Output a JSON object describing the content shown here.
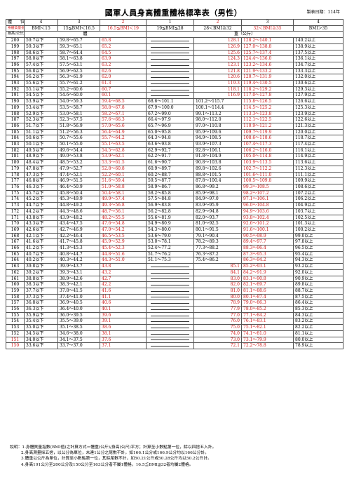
{
  "title": "國軍人員身高體重體格標準表（男性）",
  "date_label": "製表日期：114年",
  "header": {
    "row1": [
      "體　　位",
      "4",
      "3",
      "2",
      "1",
      "2",
      "3",
      "4"
    ],
    "row2": [
      "身體質量指數",
      "BMI＜15",
      "15≦BMI＜16.5",
      "16.5≦BMI＜19",
      "19≦BMI≦28",
      "28＜BMI≦32",
      "32＜BMI≦35",
      "BMI＞35"
    ],
    "row3_left": "身高(公分)",
    "row3_mid": "體",
    "row3_right": "重（公斤）"
  },
  "rows": [
    {
      "h": "200",
      "a": "59.7以下",
      "b": "59.8～65.7",
      "c": "65.8",
      "d": "",
      "e": "128.1",
      "f": "128.2～140.1",
      "g": "140.2以上"
    },
    {
      "h": "199",
      "a": "59.3以下",
      "b": "59.3～65.1",
      "c": "65.2",
      "d": "",
      "e": "126.9",
      "f": "127.0～138.8",
      "g": "138.9以上"
    },
    {
      "h": "198",
      "a": "58.6以下",
      "b": "58.7～64.4",
      "c": "64.5",
      "d": "",
      "e": "125.6",
      "f": "125.7～137.4",
      "g": "137.5以上"
    },
    {
      "h": "197",
      "a": "58.0以下",
      "b": "58.1～63.8",
      "c": "63.9",
      "d": "",
      "e": "124.3",
      "f": "124.4～136.0",
      "g": "136.1以上"
    },
    {
      "h": "196",
      "a": "57.4以下",
      "b": "57.5～63.1",
      "c": "63.2",
      "d": "",
      "e": "123.1",
      "f": "123.2～134.6",
      "g": "134.7以上"
    },
    {
      "h": "195",
      "a": "56.8以下",
      "b": "56.9～62.5",
      "c": "62.6",
      "d": "",
      "e": "121.8",
      "f": "121.9～133.2",
      "g": "133.3以上"
    },
    {
      "h": "194",
      "a": "56.2以下",
      "b": "56.3～61.9",
      "c": "62.0",
      "d": "",
      "e": "120.6",
      "f": "120.7～131.9",
      "g": "132.0以上"
    },
    {
      "h": "193",
      "a": "55.6以下",
      "b": "55.7～61.2",
      "c": "61.3",
      "d": "",
      "e": "119.3",
      "f": "119.4～130.5",
      "g": "130.6以上"
    },
    {
      "h": "192",
      "a": "55.1以下",
      "b": "55.2～60.6",
      "c": "60.7",
      "d": "",
      "e": "118.1",
      "f": "118.2～129.2",
      "g": "129.3以上"
    },
    {
      "h": "191",
      "a": "54.5以下",
      "b": "54.6～60.0",
      "c": "60.1",
      "d": "",
      "e": "116.9",
      "f": "117.0～127.8",
      "g": "127.9以上"
    },
    {
      "h": "190",
      "a": "53.9以下",
      "b": "54.0～59.3",
      "c": "59.4～68.5",
      "d": "68.6～101.1",
      "e": "101.2～115.7",
      "f": "115.8～126.5",
      "g": "126.6以上"
    },
    {
      "h": "189",
      "a": "53.4以下",
      "b": "53.5～58.7",
      "c": "58.8～67.8",
      "d": "67.9～100.0",
      "e": "100.1～114.4",
      "f": "114.5～125.2",
      "g": "125.3以上"
    },
    {
      "h": "188",
      "a": "52.9以下",
      "b": "53.0～58.1",
      "c": "58.2～67.1",
      "d": "67.2～99.0",
      "e": "99.1～113.2",
      "f": "113.3～123.8",
      "g": "123.9以上"
    },
    {
      "h": "187",
      "a": "52.3以下",
      "b": "52.3～57.5",
      "c": "57.6～66.3",
      "d": "66.4～97.9",
      "e": "98.0～112.0",
      "f": "112.1～122.5",
      "g": "122.6以上"
    },
    {
      "h": "186",
      "a": "51.7以下",
      "b": "51.8～56.9",
      "c": "57.0～65.6",
      "d": "65.7～96.9",
      "e": "97.0～110.8",
      "f": "110.9～121.2",
      "g": "121.3以上"
    },
    {
      "h": "185",
      "a": "51.1以下",
      "b": "51.2～56.3",
      "c": "56.4～64.9",
      "d": "65.0～95.8",
      "e": "95.9～109.6",
      "f": "109.7～119.9",
      "g": "120.0以上"
    },
    {
      "h": "184",
      "a": "50.6以下",
      "b": "50.7～55.6",
      "c": "55.7～64.2",
      "d": "64.3～94.8",
      "e": "94.9～108.5",
      "f": "108.6～118.6",
      "g": "118.7以上"
    },
    {
      "h": "183",
      "a": "50.1以下",
      "b": "50.1～55.0",
      "c": "55.1～63.5",
      "d": "63.6～93.8",
      "e": "93.9～107.3",
      "f": "107.4～117.3",
      "g": "117.4以上"
    },
    {
      "h": "182",
      "a": "49.5以下",
      "b": "49.6～54.4",
      "c": "54.5～62.8",
      "d": "62.9～92.7",
      "e": "92.8～106.1",
      "f": "106.2～116.0",
      "g": "116.1以上"
    },
    {
      "h": "181",
      "a": "48.9以下",
      "b": "49.0～53.8",
      "c": "53.9～62.1",
      "d": "62.2～91.7",
      "e": "91.8～104.9",
      "f": "105.0～114.8",
      "g": "114.9以上"
    },
    {
      "h": "180",
      "a": "48.4以下",
      "b": "48.5～53.2",
      "c": "53.3～61.5",
      "d": "61.6～90.7",
      "e": "90.8～103.8",
      "f": "103.9～113.5",
      "g": "113.6以上"
    },
    {
      "h": "179",
      "a": "47.8以下",
      "b": "47.9～52.7",
      "c": "52.8～60.8",
      "d": "60.9～89.7",
      "e": "89.8～102.6",
      "f": "102.7～112.2",
      "g": "112.3以上"
    },
    {
      "h": "178",
      "a": "47.3以下",
      "b": "47.4～52.1",
      "c": "52.2～60.1",
      "d": "60.2～88.7",
      "e": "88.8～101.5",
      "f": "101.6～111.0",
      "g": "111.1以上"
    },
    {
      "h": "177",
      "a": "46.8以下",
      "b": "46.9～51.5",
      "c": "51.6～59.4",
      "d": "59.5～87.7",
      "e": "87.8～100.4",
      "f": "100.5～109.8",
      "g": "109.9以上"
    },
    {
      "h": "176",
      "a": "46.3以下",
      "b": "46.4～50.9",
      "c": "51.0～58.8",
      "d": "58.9～86.7",
      "e": "86.8～99.2",
      "f": "99.3～108.5",
      "g": "108.6以上"
    },
    {
      "h": "175",
      "a": "45.7以下",
      "b": "45.8～50.4",
      "c": "50.4～58.1",
      "d": "58.2～85.8",
      "e": "85.9～98.1",
      "f": "98.2～107.2",
      "g": "107.2以上"
    },
    {
      "h": "174",
      "a": "45.2以下",
      "b": "45.3～49.9",
      "c": "49.9～57.4",
      "d": "57.5～84.8",
      "e": "84.9～97.0",
      "f": "97.1～106.1",
      "g": "106.2以上"
    },
    {
      "h": "173",
      "a": "44.7以下",
      "b": "44.8～49.2",
      "c": "49.3～56.8",
      "d": "56.9～83.8",
      "e": "83.9～95.9",
      "f": "96.0～104.8",
      "g": "104.9以上"
    },
    {
      "h": "172",
      "a": "44.2以下",
      "b": "44.3～48.6",
      "c": "48.7～56.1",
      "d": "56.2～82.8",
      "e": "82.9～94.8",
      "f": "94.9～103.6",
      "g": "103.7以上"
    },
    {
      "h": "171",
      "a": "43.8以下",
      "b": "43.9～48.2",
      "c": "48.2～55.5",
      "d": "55.6～81.9",
      "e": "82.0～93.7",
      "f": "93.8～102.4",
      "g": "102.5以上"
    },
    {
      "h": "170",
      "a": "43.3以下",
      "b": "43.4～47.5",
      "c": "47.6～54.8",
      "d": "54.9～80.9",
      "e": "81.0～92.5",
      "f": "92.6～101.2",
      "g": "101.3以上"
    },
    {
      "h": "169",
      "a": "42.6以下",
      "b": "42.7～46.9",
      "c": "47.0～54.2",
      "d": "54.3～80.0",
      "e": "80.1～91.5",
      "f": "91.6～100.1",
      "g": "100.2以上"
    },
    {
      "h": "168",
      "a": "42.1以下",
      "b": "42.2～46.4",
      "c": "46.5～53.5",
      "d": "53.6～79.0",
      "e": "79.1～90.4",
      "f": "90.5～98.9",
      "g": "99.0以上"
    },
    {
      "h": "167",
      "a": "41.6以下",
      "b": "41.7～45.8",
      "c": "45.9～52.9",
      "d": "53.0～78.1",
      "e": "78.2～89.3",
      "f": "89.4～97.7",
      "g": "97.8以上"
    },
    {
      "h": "166",
      "a": "41.2以下",
      "b": "41.3～45.3",
      "c": "45.4～52.3",
      "d": "52.4～77.2",
      "e": "77.3～88.2",
      "f": "88.3～96.4",
      "g": "96.5以上"
    },
    {
      "h": "165",
      "a": "40.7以下",
      "b": "40.8～44.7",
      "c": "44.8～51.6",
      "d": "51.7～76.2",
      "e": "76.3～87.2",
      "f": "87.3～95.3",
      "g": "95.4以上"
    },
    {
      "h": "164",
      "a": "40.2以下",
      "b": "40.3～44.2",
      "c": "44.3～51.0",
      "d": "51.1～75.3",
      "e": "75.4～86.2",
      "f": "86.3～94.2",
      "g": "94.3以上"
    },
    {
      "h": "163",
      "a": "39.8以下",
      "b": "39.9～43.7",
      "c": "43.8",
      "d": "",
      "e": "85.1",
      "f": "85.2～93.1",
      "g": "93.2以上"
    },
    {
      "h": "162",
      "a": "39.2以下",
      "b": "39.3～43.1",
      "c": "43.2",
      "d": "",
      "e": "84.1",
      "f": "84.2～91.9",
      "g": "92.0以上"
    },
    {
      "h": "161",
      "a": "38.8以下",
      "b": "38.9～42.6",
      "c": "42.7",
      "d": "",
      "e": "83.0",
      "f": "83.1～90.8",
      "g": "90.9以上"
    },
    {
      "h": "160",
      "a": "38.3以下",
      "b": "38.3～42.1",
      "c": "42.2",
      "d": "",
      "e": "82.0",
      "f": "82.1～89.7",
      "g": "89.8以上"
    },
    {
      "h": "159",
      "a": "37.7以下",
      "b": "37.8～41.5",
      "c": "41.6",
      "d": "",
      "e": "81.0",
      "f": "81.1～88.6",
      "g": "88.7以上"
    },
    {
      "h": "158",
      "a": "37.3以下",
      "b": "37.4～41.0",
      "c": "41.1",
      "d": "",
      "e": "80.0",
      "f": "80.1～87.4",
      "g": "87.5以上"
    },
    {
      "h": "157",
      "a": "36.8以下",
      "b": "36.9～40.5",
      "c": "40.6",
      "d": "",
      "e": "78.9",
      "f": "79.0～86.3",
      "g": "86.4以上"
    },
    {
      "h": "156",
      "a": "36.3以下",
      "b": "36.4～40.0",
      "c": "40.1",
      "d": "",
      "e": "77.9",
      "f": "78.0～85.2",
      "g": "85.3以上"
    },
    {
      "h": "155",
      "a": "35.9以下",
      "b": "36.0～39.5",
      "c": "39.6",
      "d": "",
      "e": "77.0",
      "f": "77.1～84.2",
      "g": "84.3以上"
    },
    {
      "h": "154",
      "a": "35.4以下",
      "b": "35.5～39.0",
      "c": "39.1",
      "d": "",
      "e": "76.0",
      "f": "76.1～83.1",
      "g": "83.2以上"
    },
    {
      "h": "153",
      "a": "35.0以下",
      "b": "35.1～38.5",
      "c": "38.6",
      "d": "",
      "e": "75.0",
      "f": "75.1～82.1",
      "g": "82.2以上"
    },
    {
      "h": "152",
      "a": "34.5以下",
      "b": "34.6～38.0",
      "c": "38.1",
      "d": "",
      "e": "74.0",
      "f": "74.1～81.0",
      "g": "81.1以上"
    },
    {
      "h": "151",
      "a": "34.0以下",
      "b": "34.1～37.5",
      "c": "37.6",
      "d": "",
      "e": "73.0",
      "f": "73.1～79.9",
      "g": "80.0以上"
    },
    {
      "h": "150",
      "a": "33.6以下",
      "b": "33.7～37.0",
      "c": "37.1",
      "d": "",
      "e": "72.1",
      "f": "72.2～78.8",
      "g": "78.9以上"
    }
  ],
  "notes": [
    "說明：1.身體質量指數(BMI值)之計算方式＝體重(公斤)/身高(公尺)平方；計算至小數點第一位，餘以四捨五入計。",
    "2.身高測量採五捨，以公分為單位，未達1公分之尾數不計，如166.1公分或166.9公分均以166公分計。",
    "3.體重以公斤為單位，計算至小數點第一位，其餘尾數不計，如50.21公斤或50.28公斤均以50.2公斤計。",
    "4.身高191公分至200公分及150公分至163公分者不屬1體格，16.5≦BMI≦32者均屬2體格。"
  ]
}
